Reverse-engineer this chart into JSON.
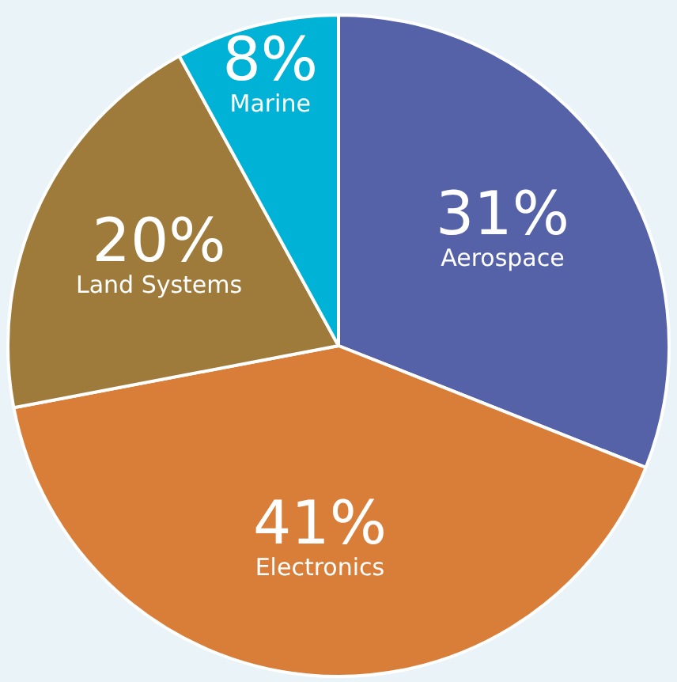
{
  "chart_data": {
    "type": "pie",
    "categories": [
      "Aerospace",
      "Electronics",
      "Land Systems",
      "Marine"
    ],
    "values": [
      31,
      41,
      20,
      8
    ],
    "colors": [
      "#5562a8",
      "#d97e38",
      "#9e7b3b",
      "#00b2d5"
    ],
    "value_labels": [
      "31%",
      "41%",
      "20%",
      "8%"
    ],
    "legend": false
  }
}
